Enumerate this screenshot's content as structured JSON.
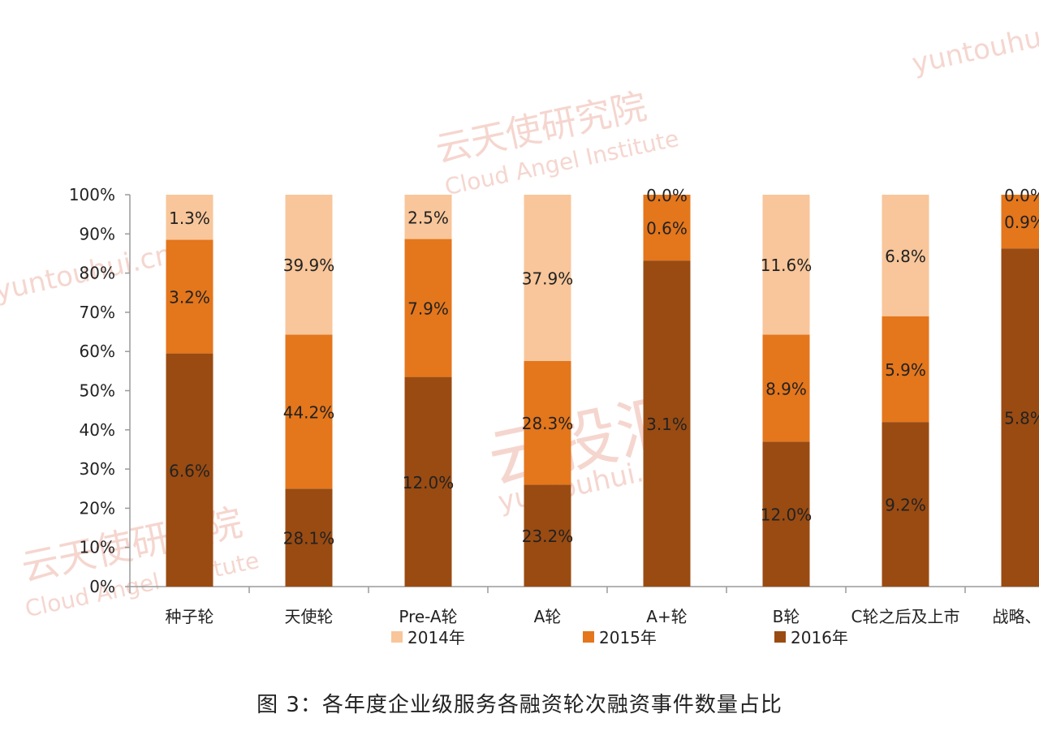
{
  "watermarks": {
    "brand_cn": "云投汇",
    "brand_en": "yuntouhui.cn",
    "institute_cn": "云天使研究院",
    "institute_en": "Cloud Angel Institute"
  },
  "caption": "图 3：各年度企业级服务各融资轮次融资事件数量占比",
  "colors": {
    "2014": "#f8c69a",
    "2015": "#e4761c",
    "2016": "#9a4b12",
    "axis": "#9a9a9a",
    "text": "#222222"
  },
  "chart_data": {
    "type": "bar",
    "stacked": true,
    "percent_stacked": true,
    "title": "",
    "xlabel": "",
    "ylabel": "",
    "ylim": [
      0,
      100
    ],
    "yticks": [
      "0%",
      "10%",
      "20%",
      "30%",
      "40%",
      "50%",
      "60%",
      "70%",
      "80%",
      "90%",
      "100%"
    ],
    "categories": [
      "种子轮",
      "天使轮",
      "Pre-A轮",
      "A轮",
      "A+轮",
      "B轮",
      "C轮之后及上市",
      "战略、并"
    ],
    "series": [
      {
        "name": "2016年",
        "color_key": "2016",
        "share": [
          59.5,
          25.0,
          53.5,
          26.0,
          83.2,
          37.0,
          42.0,
          86.3
        ],
        "labels": [
          "6.6%",
          "28.1%",
          "12.0%",
          "23.2%",
          "3.1%",
          "12.0%",
          "9.2%",
          "5.8%"
        ]
      },
      {
        "name": "2015年",
        "color_key": "2015",
        "share": [
          29.0,
          39.3,
          35.2,
          31.6,
          16.8,
          27.3,
          27.0,
          13.7
        ],
        "labels": [
          "3.2%",
          "44.2%",
          "7.9%",
          "28.3%",
          "0.6%",
          "8.9%",
          "5.9%",
          "0.9%"
        ]
      },
      {
        "name": "2014年",
        "color_key": "2014",
        "share": [
          11.5,
          35.7,
          11.3,
          42.4,
          0.0,
          35.7,
          31.0,
          0.0
        ],
        "labels": [
          "1.3%",
          "39.9%",
          "2.5%",
          "37.9%",
          "0.0%",
          "11.6%",
          "6.8%",
          "0.0%"
        ]
      }
    ],
    "legend": {
      "placement": "bottom",
      "entries": [
        "2014年",
        "2015年",
        "2016年"
      ]
    },
    "grid": false
  }
}
